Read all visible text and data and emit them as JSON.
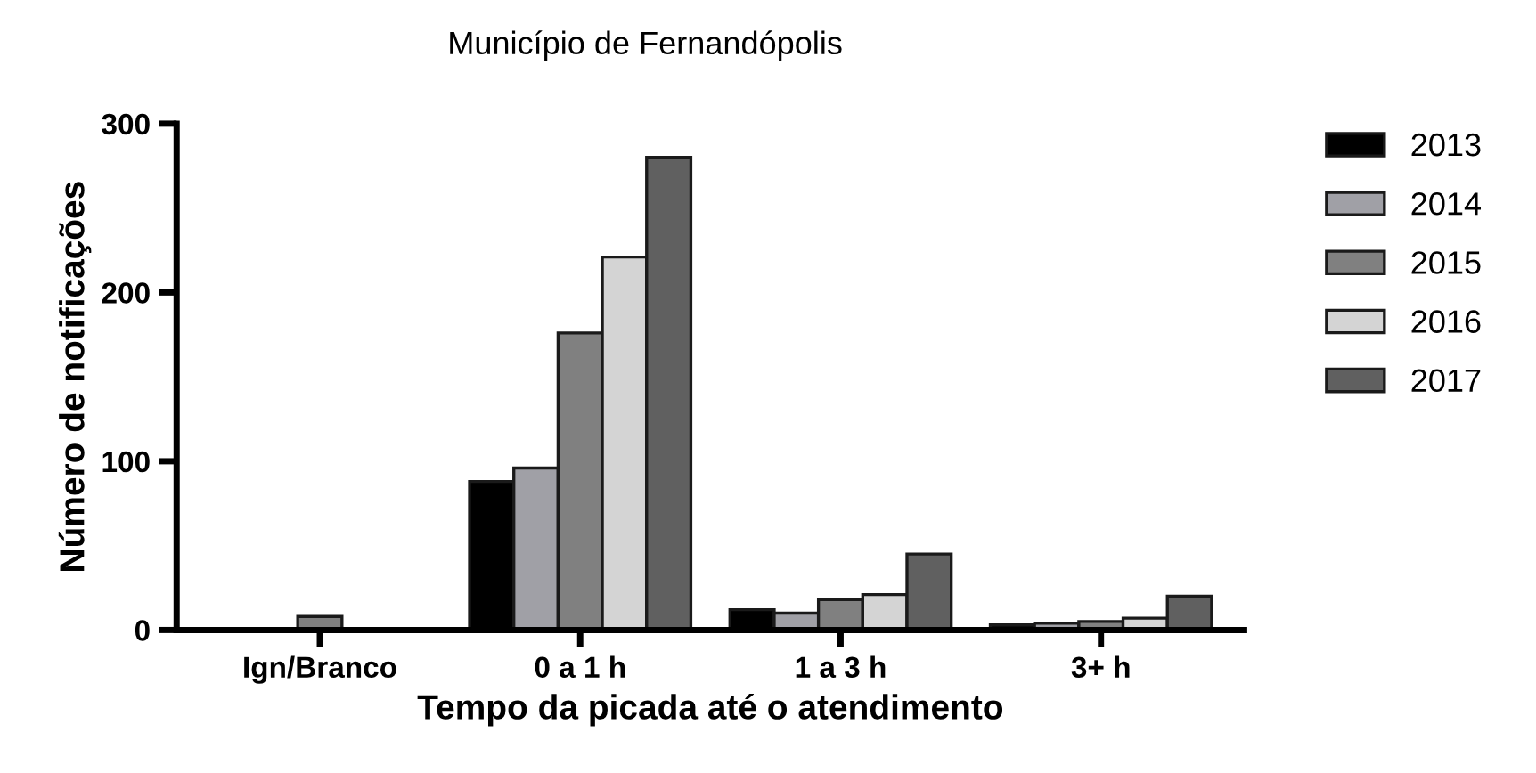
{
  "chart_data": {
    "type": "bar",
    "title": "Município de Fernandópolis",
    "xlabel": "Tempo da picada até o atendimento",
    "ylabel": "Número de notificações",
    "categories": [
      "Ign/Branco",
      "0 a 1 h",
      "1 a 3 h",
      "3+ h"
    ],
    "series": [
      {
        "name": "2013",
        "color": "#000000",
        "values": [
          null,
          88,
          12,
          3
        ]
      },
      {
        "name": "2014",
        "color": "#a0a0a6",
        "values": [
          null,
          96,
          10,
          4
        ]
      },
      {
        "name": "2015",
        "color": "#808080",
        "values": [
          8,
          176,
          18,
          5
        ]
      },
      {
        "name": "2016",
        "color": "#d4d4d4",
        "values": [
          null,
          221,
          21,
          7
        ]
      },
      {
        "name": "2017",
        "color": "#606060",
        "values": [
          null,
          280,
          45,
          20
        ]
      }
    ],
    "ylim": [
      0,
      300
    ],
    "yticks": [
      0,
      100,
      200,
      300
    ],
    "grid": false,
    "legend": "right"
  }
}
